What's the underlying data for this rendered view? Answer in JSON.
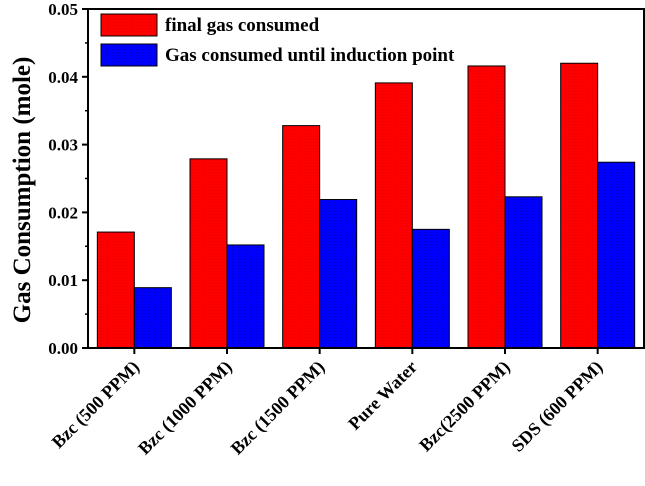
{
  "chart_data": {
    "type": "bar",
    "title": "",
    "xlabel": "",
    "ylabel": "Gas Consumption (mole)",
    "ylim": [
      0,
      0.05
    ],
    "yticks": [
      "0.00",
      "0.01",
      "0.02",
      "0.03",
      "0.04",
      "0.05"
    ],
    "categories": [
      "Bzc (500 PPM)",
      "Bzc (1000 PPM)",
      "Bzc (1500 PPM)",
      "Pure Water",
      "Bzc(2500 PPM)",
      "SDS (600 PPM)"
    ],
    "series": [
      {
        "name": "final gas consumed",
        "color": "#ff0000",
        "values": [
          0.0171,
          0.0279,
          0.0328,
          0.0391,
          0.0416,
          0.042
        ]
      },
      {
        "name": "Gas consumed until induction point",
        "color": "#0000ff",
        "values": [
          0.0089,
          0.0152,
          0.0219,
          0.0175,
          0.0223,
          0.0274
        ]
      }
    ],
    "legend_position": "top-left",
    "grid": false
  }
}
